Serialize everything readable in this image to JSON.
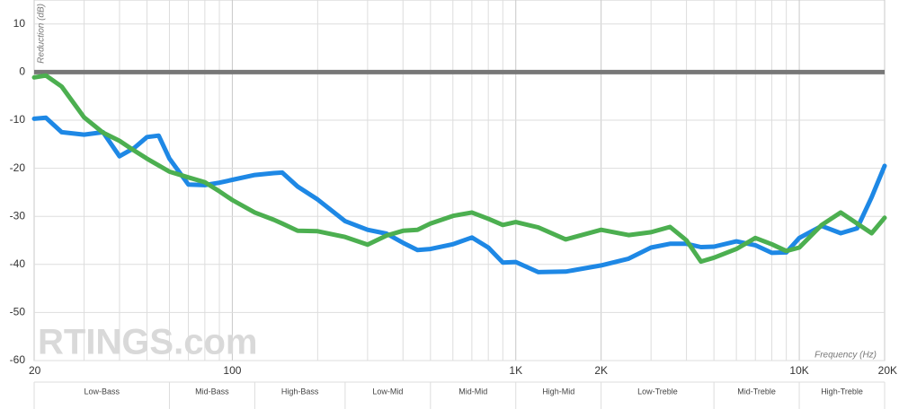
{
  "chart_data": {
    "type": "line",
    "y_label": "Reduction (dB)",
    "x_label": "Frequency (Hz)",
    "watermark": "RTINGS.com",
    "log_x": true,
    "xlim": [
      20,
      20000
    ],
    "ylim": [
      -60,
      15
    ],
    "xticks": [
      20,
      100,
      {
        "value": 1000,
        "label": "1K"
      },
      {
        "value": 2000,
        "label": "2K"
      },
      {
        "value": 10000,
        "label": "10K"
      },
      {
        "value": 20000,
        "label": "20K"
      }
    ],
    "xgrid": [
      30,
      40,
      50,
      60,
      70,
      80,
      90,
      200,
      300,
      400,
      500,
      600,
      700,
      800,
      900,
      3000,
      4000,
      5000,
      6000,
      7000,
      8000,
      9000
    ],
    "yticks": [
      10,
      0,
      -10,
      -20,
      -30,
      -40,
      -50,
      -60
    ],
    "zero_line": true,
    "bands": [
      {
        "label": "Low-Bass",
        "from": 20,
        "to": 60
      },
      {
        "label": "Mid-Bass",
        "from": 60,
        "to": 120
      },
      {
        "label": "High-Bass",
        "from": 120,
        "to": 250
      },
      {
        "label": "Low-Mid",
        "from": 250,
        "to": 500
      },
      {
        "label": "Mid-Mid",
        "from": 500,
        "to": 1000
      },
      {
        "label": "High-Mid",
        "from": 1000,
        "to": 2000
      },
      {
        "label": "Low-Treble",
        "from": 2000,
        "to": 5000
      },
      {
        "label": "Mid-Treble",
        "from": 5000,
        "to": 10000
      },
      {
        "label": "High-Treble",
        "from": 10000,
        "to": 20000
      }
    ],
    "x": [
      20,
      22,
      25,
      30,
      35,
      40,
      45,
      50,
      55,
      60,
      70,
      80,
      90,
      100,
      120,
      140,
      150,
      170,
      200,
      250,
      300,
      350,
      400,
      450,
      500,
      600,
      700,
      800,
      900,
      1000,
      1200,
      1500,
      2000,
      2500,
      3000,
      3500,
      4000,
      4500,
      5000,
      6000,
      7000,
      8000,
      9000,
      10000,
      12000,
      14000,
      16000,
      18000,
      20000
    ],
    "series": [
      {
        "color": "#1e88e5",
        "values": [
          -9.7,
          -9.5,
          -12.5,
          -13,
          -12.5,
          -17.5,
          -15.8,
          -13.5,
          -13.2,
          -18,
          -23.4,
          -23.5,
          -23,
          -22.4,
          -21.4,
          -21,
          -20.9,
          -23.8,
          -26.5,
          -31,
          -32.8,
          -33.6,
          -35.5,
          -37,
          -36.8,
          -35.8,
          -34.4,
          -36.5,
          -39.6,
          -39.5,
          -41.6,
          -41.5,
          -40.2,
          -38.8,
          -36.5,
          -35.7,
          -35.7,
          -36.4,
          -36.3,
          -35.2,
          -36,
          -37.6,
          -37.5,
          -34.5,
          -32,
          -33.5,
          -32.5,
          -26,
          -19.5
        ]
      },
      {
        "color": "#4caf50",
        "values": [
          -1.1,
          -0.7,
          -3,
          -9.4,
          -12.6,
          -14.3,
          -16.3,
          -18,
          -19.4,
          -20.7,
          -21.9,
          -22.9,
          -24.8,
          -26.6,
          -29.2,
          -30.7,
          -31.5,
          -33,
          -33.1,
          -34.3,
          -35.9,
          -34,
          -33,
          -32.8,
          -31.5,
          -29.9,
          -29.2,
          -30.5,
          -31.8,
          -31.2,
          -32.3,
          -34.8,
          -32.8,
          -33.9,
          -33.3,
          -32.2,
          -35,
          -39.4,
          -38.6,
          -36.8,
          -34.5,
          -35.8,
          -37.2,
          -36.5,
          -31.8,
          -29.2,
          -31.5,
          -33.5,
          -30.3
        ]
      }
    ]
  }
}
